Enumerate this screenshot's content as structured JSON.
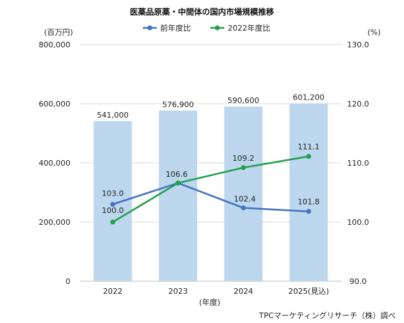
{
  "chart_data": {
    "type": "bar",
    "title": "医薬品原薬・中間体の国内市場規模推移",
    "categories": [
      "2022",
      "2023",
      "2024",
      "2025(見込)"
    ],
    "xlabel": "(年度)",
    "ylabel_left": "(百万円)",
    "ylabel_right": "(%)",
    "ylim_left": [
      0,
      800000
    ],
    "yticks_left": [
      "0",
      "200,000",
      "400,000",
      "600,000",
      "800,000"
    ],
    "ylim_right": [
      90,
      130
    ],
    "yticks_right": [
      "90.0",
      "100.0",
      "110.0",
      "120.0",
      "130.0"
    ],
    "bars": {
      "values": [
        541000,
        576900,
        590600,
        601200
      ],
      "labels": [
        "541,000",
        "576,900",
        "590,600",
        "601,200"
      ],
      "color": "#bdd7ee"
    },
    "series": [
      {
        "name": "前年度比",
        "axis": "right",
        "color": "#4472c4",
        "values": [
          103.0,
          106.6,
          102.4,
          101.8
        ],
        "labels": [
          "103.0",
          "106.6",
          "102.4",
          "101.8"
        ]
      },
      {
        "name": "2022年度比",
        "axis": "right",
        "color": "#21a04a",
        "values": [
          100.0,
          106.6,
          109.2,
          111.1
        ],
        "labels": [
          "100.0",
          "",
          "109.2",
          "111.1"
        ]
      }
    ],
    "grid": true,
    "legend": "top-center",
    "source": "TPCマーケティングリサーチ（株）調べ"
  }
}
